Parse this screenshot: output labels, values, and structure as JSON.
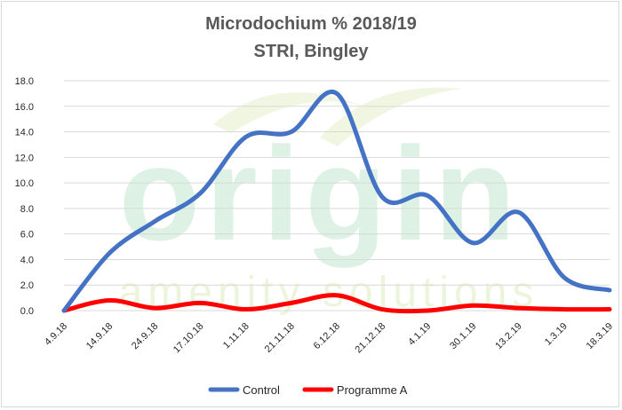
{
  "chart_data": {
    "type": "line",
    "title": "Microdochium % 2018/19",
    "subtitle": "STRI, Bingley",
    "categories": [
      "4.9.18",
      "14.9.18",
      "24.9.18",
      "17.10.18",
      "1.11.18",
      "21.11.18",
      "6.12.18",
      "21.12.18",
      "4.1.19",
      "30.1.19",
      "13.2.19",
      "1.3.19",
      "18.3.19"
    ],
    "ylim": [
      0,
      18
    ],
    "yticks": [
      "0.0",
      "2.0",
      "4.0",
      "6.0",
      "8.0",
      "10.0",
      "12.0",
      "14.0",
      "16.0",
      "18.0"
    ],
    "grid": true,
    "legend_position": "bottom",
    "series": [
      {
        "name": "Control",
        "color": "#4472c4",
        "values": [
          0.0,
          4.5,
          7.0,
          9.2,
          13.6,
          14.0,
          17.0,
          8.9,
          9.0,
          5.3,
          7.7,
          2.6,
          1.6
        ]
      },
      {
        "name": "Programme A",
        "color": "#ff0000",
        "values": [
          0.0,
          0.8,
          0.2,
          0.6,
          0.1,
          0.6,
          1.2,
          0.1,
          0.0,
          0.4,
          0.2,
          0.1,
          0.1
        ]
      }
    ],
    "watermark": {
      "line1": "origin",
      "line2": "amenity solutions"
    }
  }
}
